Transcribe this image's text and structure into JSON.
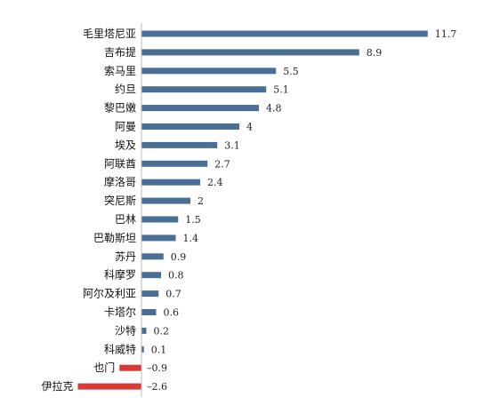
{
  "chart_data": {
    "type": "bar",
    "orientation": "horizontal",
    "categories": [
      "毛里塔尼亚",
      "吉布提",
      "索马里",
      "约旦",
      "黎巴嫩",
      "阿曼",
      "埃及",
      "阿联酋",
      "摩洛哥",
      "突尼斯",
      "巴林",
      "巴勒斯坦",
      "苏丹",
      "科摩罗",
      "阿尔及利亚",
      "卡塔尔",
      "沙特",
      "科威特",
      "也门",
      "伊拉克"
    ],
    "values": [
      11.7,
      8.9,
      5.5,
      5.1,
      4.8,
      4,
      3.1,
      2.7,
      2.4,
      2,
      1.5,
      1.4,
      0.9,
      0.8,
      0.7,
      0.6,
      0.2,
      0.1,
      -0.9,
      -2.6
    ],
    "value_labels": [
      "11.7",
      "8.9",
      "5.5",
      "5.1",
      "4.8",
      "4",
      "3.1",
      "2.7",
      "2.4",
      "2",
      "1.5",
      "1.4",
      "0.9",
      "0.8",
      "0.7",
      "0.6",
      "0.2",
      "0.1",
      "–0.9",
      "–2.6"
    ],
    "xlim": [
      -2.6,
      11.7
    ],
    "grid": false,
    "colors": {
      "positive": "#4a6f96",
      "negative": "#d83a35",
      "axis": "#bbbbbb"
    }
  }
}
